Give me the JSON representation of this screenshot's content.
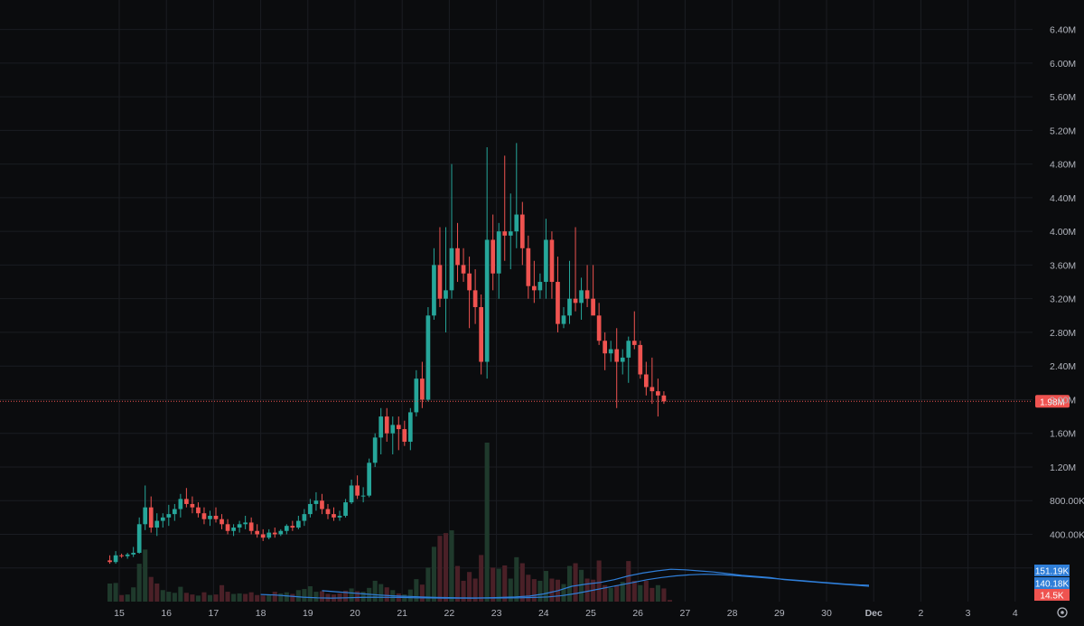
{
  "colors": {
    "background": "#0b0c0e",
    "grid": "#1b1d22",
    "up": "#26a69a",
    "down": "#ef5350",
    "up_volume": "#1f3a2c",
    "down_volume": "#4a2027",
    "axis_text": "#b2b5be",
    "ma_line": "#2f7ed8",
    "price_line": "#ef5350"
  },
  "chart_data": {
    "type": "candlestick",
    "x_labels": [
      "15",
      "16",
      "17",
      "18",
      "19",
      "20",
      "21",
      "22",
      "23",
      "24",
      "25",
      "26",
      "27",
      "28",
      "29",
      "30",
      "Dec",
      "2",
      "3",
      "4"
    ],
    "price_axis": {
      "ticks": [
        "6.40M",
        "6.00M",
        "5.60M",
        "5.20M",
        "4.80M",
        "4.40M",
        "4.00M",
        "3.60M",
        "3.20M",
        "2.80M",
        "2.40M",
        "2.00M",
        "1.60M",
        "1.20M",
        "800.00K",
        "400.00K",
        "0"
      ],
      "tick_values": [
        6400000,
        6000000,
        5600000,
        5200000,
        4800000,
        4400000,
        4000000,
        3600000,
        3200000,
        2800000,
        2400000,
        2000000,
        1600000,
        1200000,
        800000,
        400000,
        0
      ],
      "ylim": [
        -400000,
        6750000
      ]
    },
    "current_price": {
      "value": 1980000,
      "label": "1.98M"
    },
    "volume_labels": [
      {
        "label": "151.19K",
        "color": "#2f7ed8"
      },
      {
        "label": "140.18K",
        "color": "#2f7ed8"
      },
      {
        "label": "14.5K",
        "color": "#ef5350"
      }
    ],
    "ohlc_step_days": 0.125,
    "ohlc_start_day": 15,
    "ohlc": [
      [
        90000,
        150000,
        50000,
        70000
      ],
      [
        70000,
        200000,
        50000,
        150000
      ],
      [
        150000,
        170000,
        120000,
        140000
      ],
      [
        140000,
        180000,
        110000,
        160000
      ],
      [
        160000,
        250000,
        130000,
        180000
      ],
      [
        180000,
        600000,
        170000,
        520000
      ],
      [
        520000,
        980000,
        450000,
        720000
      ],
      [
        720000,
        850000,
        420000,
        480000
      ],
      [
        480000,
        650000,
        380000,
        560000
      ],
      [
        560000,
        650000,
        480000,
        600000
      ],
      [
        600000,
        750000,
        500000,
        640000
      ],
      [
        640000,
        760000,
        560000,
        700000
      ],
      [
        700000,
        880000,
        600000,
        820000
      ],
      [
        820000,
        950000,
        720000,
        760000
      ],
      [
        760000,
        850000,
        650000,
        720000
      ],
      [
        720000,
        780000,
        600000,
        650000
      ],
      [
        650000,
        720000,
        520000,
        580000
      ],
      [
        580000,
        680000,
        500000,
        620000
      ],
      [
        620000,
        720000,
        540000,
        580000
      ],
      [
        580000,
        640000,
        460000,
        520000
      ],
      [
        520000,
        580000,
        400000,
        440000
      ],
      [
        440000,
        520000,
        380000,
        480000
      ],
      [
        480000,
        560000,
        420000,
        520000
      ],
      [
        520000,
        620000,
        460000,
        540000
      ],
      [
        540000,
        600000,
        400000,
        440000
      ],
      [
        440000,
        520000,
        360000,
        400000
      ],
      [
        400000,
        460000,
        320000,
        360000
      ],
      [
        360000,
        460000,
        340000,
        420000
      ],
      [
        420000,
        480000,
        360000,
        400000
      ],
      [
        400000,
        460000,
        380000,
        440000
      ],
      [
        440000,
        520000,
        400000,
        500000
      ],
      [
        500000,
        560000,
        440000,
        480000
      ],
      [
        480000,
        620000,
        460000,
        560000
      ],
      [
        560000,
        700000,
        500000,
        640000
      ],
      [
        640000,
        820000,
        600000,
        760000
      ],
      [
        760000,
        900000,
        680000,
        800000
      ],
      [
        800000,
        880000,
        640000,
        700000
      ],
      [
        700000,
        760000,
        580000,
        640000
      ],
      [
        640000,
        720000,
        560000,
        600000
      ],
      [
        600000,
        680000,
        560000,
        620000
      ],
      [
        620000,
        820000,
        600000,
        780000
      ],
      [
        780000,
        1050000,
        760000,
        980000
      ],
      [
        980000,
        1100000,
        820000,
        860000
      ],
      [
        860000,
        960000,
        780000,
        860000
      ],
      [
        860000,
        1300000,
        840000,
        1250000
      ],
      [
        1250000,
        1600000,
        1200000,
        1550000
      ],
      [
        1550000,
        1900000,
        1350000,
        1800000
      ],
      [
        1800000,
        1900000,
        1500000,
        1600000
      ],
      [
        1600000,
        1800000,
        1350000,
        1700000
      ],
      [
        1700000,
        1800000,
        1400000,
        1650000
      ],
      [
        1650000,
        1750000,
        1450000,
        1500000
      ],
      [
        1500000,
        1900000,
        1400000,
        1850000
      ],
      [
        1850000,
        2350000,
        1800000,
        2250000
      ],
      [
        2250000,
        2450000,
        1900000,
        2000000
      ],
      [
        2000000,
        3100000,
        1980000,
        3000000
      ],
      [
        3000000,
        3800000,
        2950000,
        3600000
      ],
      [
        3600000,
        4050000,
        3100000,
        3200000
      ],
      [
        3200000,
        4050000,
        2800000,
        3300000
      ],
      [
        3300000,
        4800000,
        3200000,
        3800000
      ],
      [
        3800000,
        4100000,
        3400000,
        3600000
      ],
      [
        3600000,
        3800000,
        3400000,
        3500000
      ],
      [
        3500000,
        3700000,
        2850000,
        3300000
      ],
      [
        3300000,
        3550000,
        2900000,
        3100000
      ],
      [
        3100000,
        3250000,
        2300000,
        2450000
      ],
      [
        2450000,
        5000000,
        2250000,
        3900000
      ],
      [
        3900000,
        4200000,
        3300000,
        3500000
      ],
      [
        3500000,
        4100000,
        3200000,
        4000000
      ],
      [
        4000000,
        4900000,
        3650000,
        3950000
      ],
      [
        3950000,
        4450000,
        3550000,
        4000000
      ],
      [
        4000000,
        5050000,
        3800000,
        4200000
      ],
      [
        4200000,
        4350000,
        3600000,
        3800000
      ],
      [
        3800000,
        3950000,
        3200000,
        3350000
      ],
      [
        3350000,
        3650000,
        3150000,
        3300000
      ],
      [
        3300000,
        3500000,
        3200000,
        3400000
      ],
      [
        3400000,
        4150000,
        3200000,
        3900000
      ],
      [
        3900000,
        4000000,
        3200000,
        3400000
      ],
      [
        3400000,
        3700000,
        2800000,
        2900000
      ],
      [
        2900000,
        3100000,
        2850000,
        3000000
      ],
      [
        3000000,
        3650000,
        2900000,
        3200000
      ],
      [
        3200000,
        4050000,
        3050000,
        3150000
      ],
      [
        3150000,
        3450000,
        2950000,
        3300000
      ],
      [
        3300000,
        3600000,
        3100000,
        3200000
      ],
      [
        3200000,
        3600000,
        3050000,
        3000000
      ],
      [
        3000000,
        3150000,
        2650000,
        2700000
      ],
      [
        2700000,
        2800000,
        2350000,
        2550000
      ],
      [
        2550000,
        2700000,
        2450000,
        2600000
      ],
      [
        2600000,
        2850000,
        1900000,
        2450000
      ],
      [
        2450000,
        2600000,
        2300000,
        2500000
      ],
      [
        2500000,
        2750000,
        2200000,
        2700000
      ],
      [
        2700000,
        3050000,
        2600000,
        2650000
      ],
      [
        2650000,
        2700000,
        2250000,
        2300000
      ],
      [
        2300000,
        2450000,
        2050000,
        2150000
      ],
      [
        2150000,
        2500000,
        1950000,
        2100000
      ],
      [
        2100000,
        2250000,
        1800000,
        2050000
      ],
      [
        2050000,
        2100000,
        1950000,
        1980000
      ]
    ],
    "volume": [
      [
        330,
        "up"
      ],
      [
        340,
        "up"
      ],
      [
        120,
        "down"
      ],
      [
        130,
        "up"
      ],
      [
        260,
        "up"
      ],
      [
        690,
        "up"
      ],
      [
        950,
        "up"
      ],
      [
        450,
        "down"
      ],
      [
        330,
        "down"
      ],
      [
        210,
        "up"
      ],
      [
        180,
        "up"
      ],
      [
        160,
        "up"
      ],
      [
        270,
        "up"
      ],
      [
        160,
        "down"
      ],
      [
        130,
        "down"
      ],
      [
        110,
        "up"
      ],
      [
        170,
        "down"
      ],
      [
        120,
        "up"
      ],
      [
        130,
        "down"
      ],
      [
        300,
        "down"
      ],
      [
        180,
        "down"
      ],
      [
        140,
        "up"
      ],
      [
        150,
        "up"
      ],
      [
        140,
        "down"
      ],
      [
        170,
        "down"
      ],
      [
        120,
        "down"
      ],
      [
        110,
        "down"
      ],
      [
        120,
        "up"
      ],
      [
        180,
        "down"
      ],
      [
        150,
        "up"
      ],
      [
        170,
        "up"
      ],
      [
        140,
        "down"
      ],
      [
        210,
        "up"
      ],
      [
        230,
        "up"
      ],
      [
        280,
        "up"
      ],
      [
        180,
        "up"
      ],
      [
        190,
        "down"
      ],
      [
        140,
        "down"
      ],
      [
        130,
        "down"
      ],
      [
        150,
        "down"
      ],
      [
        200,
        "down"
      ],
      [
        240,
        "up"
      ],
      [
        190,
        "down"
      ],
      [
        180,
        "up"
      ],
      [
        250,
        "up"
      ],
      [
        380,
        "up"
      ],
      [
        320,
        "up"
      ],
      [
        260,
        "down"
      ],
      [
        210,
        "up"
      ],
      [
        150,
        "down"
      ],
      [
        130,
        "up"
      ],
      [
        220,
        "up"
      ],
      [
        410,
        "up"
      ],
      [
        310,
        "down"
      ],
      [
        620,
        "up"
      ],
      [
        1000,
        "up"
      ],
      [
        1200,
        "down"
      ],
      [
        1250,
        "down"
      ],
      [
        1300,
        "up"
      ],
      [
        650,
        "down"
      ],
      [
        380,
        "down"
      ],
      [
        540,
        "down"
      ],
      [
        420,
        "down"
      ],
      [
        850,
        "down"
      ],
      [
        2900,
        "up"
      ],
      [
        620,
        "down"
      ],
      [
        600,
        "up"
      ],
      [
        660,
        "down"
      ],
      [
        420,
        "up"
      ],
      [
        810,
        "up"
      ],
      [
        700,
        "down"
      ],
      [
        490,
        "down"
      ],
      [
        410,
        "down"
      ],
      [
        380,
        "up"
      ],
      [
        560,
        "up"
      ],
      [
        420,
        "down"
      ],
      [
        400,
        "down"
      ],
      [
        320,
        "up"
      ],
      [
        650,
        "up"
      ],
      [
        700,
        "down"
      ],
      [
        580,
        "up"
      ],
      [
        420,
        "down"
      ],
      [
        400,
        "down"
      ],
      [
        750,
        "down"
      ],
      [
        300,
        "down"
      ],
      [
        250,
        "up"
      ],
      [
        300,
        "down"
      ],
      [
        360,
        "up"
      ],
      [
        740,
        "down"
      ],
      [
        380,
        "down"
      ],
      [
        300,
        "up"
      ],
      [
        380,
        "down"
      ],
      [
        250,
        "down"
      ],
      [
        300,
        "up"
      ],
      [
        240,
        "down"
      ],
      [
        30,
        "down"
      ]
    ],
    "volume_ma_fast": [
      [
        18.0,
        130
      ],
      [
        18.3,
        120
      ],
      [
        18.6,
        100
      ],
      [
        18.9,
        80
      ],
      [
        19.2,
        70
      ],
      [
        19.5,
        65
      ],
      [
        19.8,
        70
      ],
      [
        20.1,
        75
      ],
      [
        20.4,
        80
      ],
      [
        20.7,
        78
      ],
      [
        21.0,
        75
      ],
      [
        21.3,
        70
      ],
      [
        21.6,
        68
      ],
      [
        21.9,
        65
      ],
      [
        22.2,
        62
      ],
      [
        22.5,
        65
      ],
      [
        22.8,
        70
      ],
      [
        23.1,
        78
      ],
      [
        23.4,
        85
      ],
      [
        23.7,
        100
      ],
      [
        24.0,
        140
      ],
      [
        24.3,
        200
      ],
      [
        24.6,
        280
      ],
      [
        24.9,
        320
      ],
      [
        25.2,
        350
      ],
      [
        25.5,
        400
      ],
      [
        25.8,
        470
      ],
      [
        26.1,
        520
      ],
      [
        26.4,
        560
      ],
      [
        26.7,
        590
      ],
      [
        27.0,
        580
      ],
      [
        27.3,
        560
      ],
      [
        27.6,
        540
      ],
      [
        27.9,
        510
      ],
      [
        28.2,
        480
      ],
      [
        28.5,
        460
      ],
      [
        28.8,
        440
      ],
      [
        29.1,
        400
      ],
      [
        29.4,
        380
      ],
      [
        29.7,
        360
      ],
      [
        30.0,
        340
      ],
      [
        30.3,
        320
      ],
      [
        30.6,
        300
      ],
      [
        30.9,
        280
      ]
    ],
    "volume_ma_slow": [
      [
        19.3,
        200
      ],
      [
        19.6,
        180
      ],
      [
        19.9,
        160
      ],
      [
        20.2,
        140
      ],
      [
        20.5,
        120
      ],
      [
        20.8,
        105
      ],
      [
        21.1,
        95
      ],
      [
        21.4,
        85
      ],
      [
        21.7,
        78
      ],
      [
        22.0,
        72
      ],
      [
        22.3,
        68
      ],
      [
        22.6,
        66
      ],
      [
        22.9,
        66
      ],
      [
        23.2,
        68
      ],
      [
        23.5,
        70
      ],
      [
        23.8,
        75
      ],
      [
        24.1,
        85
      ],
      [
        24.4,
        110
      ],
      [
        24.7,
        150
      ],
      [
        25.0,
        200
      ],
      [
        25.3,
        250
      ],
      [
        25.6,
        300
      ],
      [
        25.9,
        350
      ],
      [
        26.2,
        400
      ],
      [
        26.5,
        440
      ],
      [
        26.8,
        470
      ],
      [
        27.1,
        490
      ],
      [
        27.4,
        500
      ],
      [
        27.7,
        495
      ],
      [
        28.0,
        480
      ],
      [
        28.3,
        460
      ],
      [
        28.6,
        440
      ],
      [
        28.9,
        420
      ],
      [
        29.2,
        400
      ],
      [
        29.5,
        380
      ],
      [
        29.8,
        360
      ],
      [
        30.1,
        340
      ],
      [
        30.4,
        320
      ],
      [
        30.7,
        305
      ],
      [
        30.9,
        300
      ]
    ],
    "volume_ylim": [
      0,
      2900
    ]
  }
}
